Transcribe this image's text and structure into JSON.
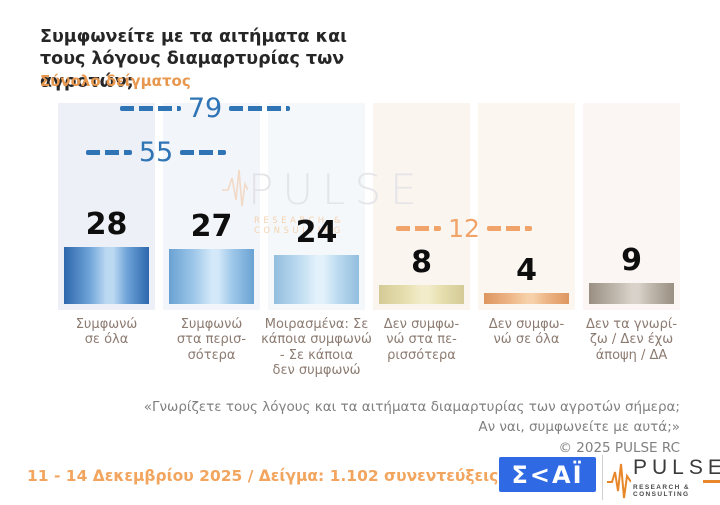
{
  "title": {
    "line1": "Συμφωνείτε με τα αιτήματα και",
    "line2": "τους λόγους διαμαρτυρίας των αγροτών;",
    "subtitle": "Σύνολο δείγματος"
  },
  "chart_data": {
    "type": "bar",
    "title": "Συμφωνείτε με τα αιτήματα και τους λόγους διαμαρτυρίας των αγροτών;",
    "subtitle": "Σύνολο δείγματος",
    "unit": "%",
    "categories": [
      "Συμφωνώ\nσε όλα",
      "Συμφωνώ\nστα περισ-\nσότερα",
      "Μοιρασμένα: Σε\nκάποια συμφωνώ\n- Σε κάποια\nδεν συμφωνώ",
      "Δεν συμφω-\nνώ στα πε-\nρισσότερα",
      "Δεν συμφω-\nνώ σε όλα",
      "Δεν τα γνωρί-\nζω / Δεν έχω\nάποψη / ΔΑ"
    ],
    "values": [
      28,
      27,
      24,
      8,
      4,
      9
    ],
    "group_annotations": [
      {
        "value": 79,
        "spans_categories": [
          0,
          1,
          2
        ],
        "color": "#2f74b5"
      },
      {
        "value": 55,
        "spans_categories": [
          0,
          1
        ],
        "color": "#2f74b5"
      },
      {
        "value": 12,
        "spans_categories": [
          3,
          4
        ],
        "color": "#f0a469"
      }
    ],
    "bar_colors": [
      {
        "edge": "#2d67ac",
        "mid": "#6fa4d8",
        "high": "#bcd9f2"
      },
      {
        "edge": "#6aa2d3",
        "mid": "#9fc8ea",
        "high": "#d3e8f8"
      },
      {
        "edge": "#92bede",
        "mid": "#bedcf1",
        "high": "#e3f1fb"
      },
      {
        "edge": "#d4ca96",
        "mid": "#e6deae",
        "high": "#f2ecca"
      },
      {
        "edge": "#dd9660",
        "mid": "#edb586",
        "high": "#f6d0a8"
      },
      {
        "edge": "#998f82",
        "mid": "#beb6ab",
        "high": "#d8d2ca"
      }
    ],
    "column_tints": [
      "#edf1f7",
      "#f2f5fa",
      "#f5f8fb",
      "#fbf5f0",
      "#fcf6f1",
      "#fbf6f3"
    ],
    "grid": false,
    "legend": false
  },
  "watermark": {
    "name": "PULSE",
    "sub": "RESEARCH & CONSULTING"
  },
  "footnote": {
    "line1": "«Γνωρίζετε τους λόγους και τα αιτήματα διαμαρτυρίας των αγροτών σήμερα;",
    "line2": "Αν ναι, συμφωνείτε με αυτά;»",
    "line3": "©  2025  PULSE RC"
  },
  "footer": {
    "survey_info": "11 - 14 Δεκεμβρίου 2025  /  Δείγμα:  1.102 συνεντεύξεις",
    "skai_logo_text": "Σ<ΑΪ",
    "pulse_logo_text": "PULSE",
    "pulse_logo_sub": "RESEARCH & CONSULTING"
  },
  "colors": {
    "accent_blue": "#2f74b5",
    "accent_orange": "#f0a469",
    "subtitle_orange": "#e8984e",
    "category_text": "#8c7b71",
    "skai_blue": "#2f6ae4",
    "pulse_orange": "#e8872a"
  }
}
